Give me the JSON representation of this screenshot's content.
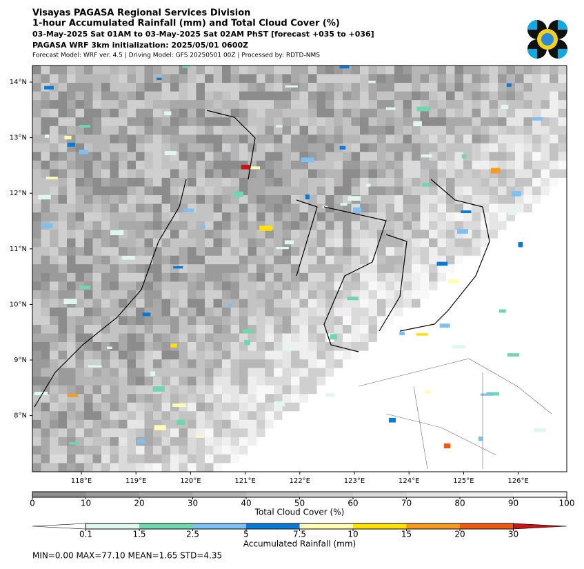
{
  "header": {
    "title": "Visayas PAGASA Regional Services Division",
    "subtitle": "1-hour Accumulated Rainfall (mm) and Total Cloud Cover (%)",
    "valid_time": "03-May-2025 Sat 01AM to 03-May-2025 Sat 02AM PhST [forecast +035 to +036]",
    "initialization": "PAGASA WRF 3km initialization: 2025/05/01 0600Z",
    "model_info": "Forecast Model: WRF ver. 4.5 | Driving Model: GFS 20250501 00Z | Processed by: RDTD-NMS"
  },
  "map": {
    "lat_ticks": [
      "14°N",
      "13°N",
      "12°N",
      "11°N",
      "10°N",
      "9°N",
      "8°N"
    ],
    "lon_ticks": [
      "118°E",
      "119°E",
      "120°E",
      "121°E",
      "122°E",
      "123°E",
      "124°E",
      "125°E",
      "126°E"
    ]
  },
  "cloud_colorbar": {
    "label": "Total Cloud Cover (%)",
    "ticks": [
      0,
      10,
      20,
      30,
      40,
      50,
      60,
      70,
      80,
      90,
      100
    ],
    "colors": [
      "#8c8c8c",
      "#9b9b9b",
      "#a9a9a9",
      "#b6b6b6",
      "#c3c3c3",
      "#cfcfcf",
      "#dadada",
      "#e5e5e5",
      "#efefef",
      "#f8f8f8"
    ]
  },
  "rain_colorbar": {
    "label": "Accumulated Rainfall (mm)",
    "ticks": [
      "0.1",
      "1.5",
      "2.5",
      "5",
      "7.5",
      "10",
      "15",
      "20",
      "30"
    ],
    "colors": [
      "#ffffff",
      "#dff7ec",
      "#6fd6ad",
      "#7fc0f2",
      "#0a7ad8",
      "#fffcb3",
      "#ffe200",
      "#f59a1c",
      "#f05a10",
      "#c81414"
    ]
  },
  "stats": "MIN=0.00   MAX=77.10   MEAN=1.65   STD=4.35"
}
